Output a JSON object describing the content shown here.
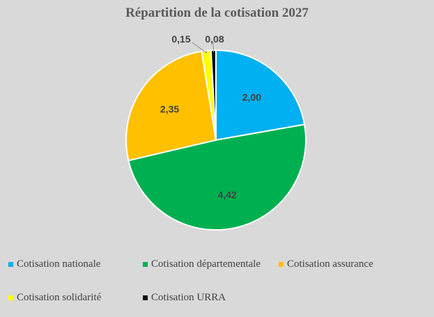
{
  "chart_data": {
    "type": "pie",
    "title": "Répartition de la cotisation 2027",
    "slices": [
      {
        "name": "Cotisation nationale",
        "value": 2.0,
        "label": "2,00",
        "color": "#00b0f0"
      },
      {
        "name": "Cotisation départementale",
        "value": 4.42,
        "label": "4,42",
        "color": "#00b050"
      },
      {
        "name": "Cotisation assurance",
        "value": 2.35,
        "label": "2,35",
        "color": "#ffc000"
      },
      {
        "name": "Cotisation solidarité",
        "value": 0.15,
        "label": "0,15",
        "color": "#ffff00"
      },
      {
        "name": "Cotisation URRA",
        "value": 0.08,
        "label": "0,08",
        "color": "#0d0d0d"
      }
    ],
    "legend_position": "bottom"
  }
}
